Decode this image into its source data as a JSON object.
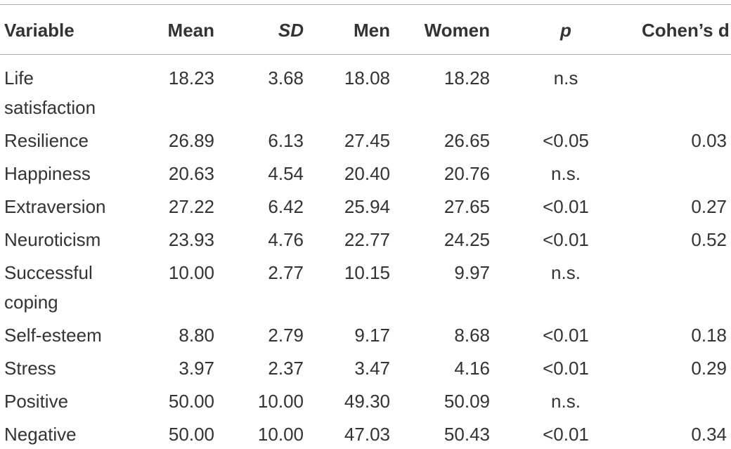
{
  "table": {
    "columns": [
      "Variable",
      "Mean",
      "SD",
      "Men",
      "Women",
      "p",
      "Cohen’s d"
    ],
    "rows": [
      {
        "variable": "Life satisfaction",
        "mean": "18.23",
        "sd": "3.68",
        "men": "18.08",
        "women": "18.28",
        "p": "n.s"
      },
      {
        "variable": "Resilience",
        "mean": "26.89",
        "sd": "6.13",
        "men": "27.45",
        "women": "26.65",
        "p": "<0.05",
        "d": "0.03"
      },
      {
        "variable": "Happiness",
        "mean": "20.63",
        "sd": "4.54",
        "men": "20.40",
        "women": "20.76",
        "p": "n.s."
      },
      {
        "variable": "Extraversion",
        "mean": "27.22",
        "sd": "6.42",
        "men": "25.94",
        "women": "27.65",
        "p": "<0.01",
        "d": "0.27"
      },
      {
        "variable": "Neuroticism",
        "mean": "23.93",
        "sd": "4.76",
        "men": "22.77",
        "women": "24.25",
        "p": "<0.01",
        "d": "0.52"
      },
      {
        "variable": "Successful coping",
        "mean": "10.00",
        "sd": "2.77",
        "men": "10.15",
        "women": "9.97",
        "p": "n.s."
      },
      {
        "variable": "Self-esteem",
        "mean": "8.80",
        "sd": "2.79",
        "men": "9.17",
        "women": "8.68",
        "p": "<0.01",
        "d": "0.18"
      },
      {
        "variable": "Stress",
        "mean": "3.97",
        "sd": "2.37",
        "men": "3.47",
        "women": "4.16",
        "p": "<0.01",
        "d": "0.29"
      },
      {
        "variable": "Positive",
        "mean": "50.00",
        "sd": "10.00",
        "men": "49.30",
        "women": "50.09",
        "p": "n.s."
      },
      {
        "variable": "Negative",
        "mean": "50.00",
        "sd": "10.00",
        "men": "47.03",
        "women": "50.43",
        "p": "<0.01",
        "d": "0.34"
      }
    ]
  }
}
